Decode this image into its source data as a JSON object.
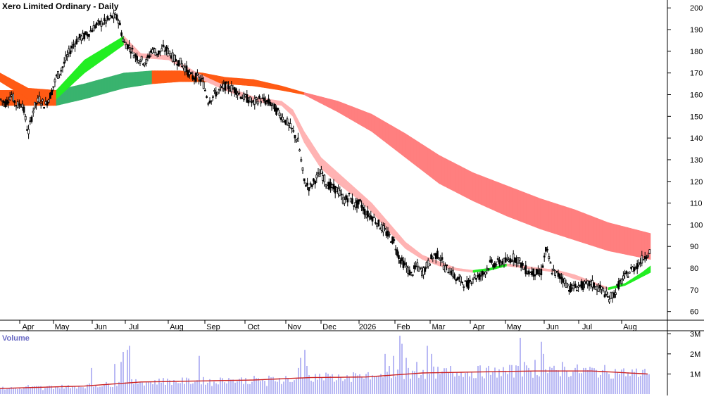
{
  "chart_data": {
    "type": "line",
    "title": "Xero Limited Ordinary - Daily",
    "price_axis": {
      "ticks": [
        200,
        190,
        180,
        170,
        160,
        150,
        140,
        130,
        120,
        110,
        100,
        90,
        80,
        70,
        60
      ],
      "ylim": [
        56,
        203
      ]
    },
    "x_axis": {
      "labels": [
        "Apr",
        "May",
        "Jun",
        "Jul",
        "Aug",
        "Sep",
        "Oct",
        "Nov",
        "Dec",
        "2026",
        "Feb",
        "Mar",
        "Apr",
        "May",
        "Jun",
        "Jul",
        "Aug"
      ]
    },
    "volume_panel": {
      "label": "Volume",
      "ticks": [
        "3M",
        "2M",
        "1M"
      ],
      "tick_values": [
        3000000,
        2000000,
        1000000
      ]
    },
    "price_series": {
      "name": "price",
      "points": [
        [
          0,
          158
        ],
        [
          8,
          156
        ],
        [
          16,
          160
        ],
        [
          24,
          155
        ],
        [
          32,
          156
        ],
        [
          40,
          142
        ],
        [
          48,
          154
        ],
        [
          56,
          158
        ],
        [
          64,
          155
        ],
        [
          72,
          160
        ],
        [
          80,
          168
        ],
        [
          88,
          172
        ],
        [
          96,
          178
        ],
        [
          104,
          183
        ],
        [
          112,
          186
        ],
        [
          120,
          187
        ],
        [
          128,
          189
        ],
        [
          136,
          192
        ],
        [
          144,
          193
        ],
        [
          152,
          194
        ],
        [
          160,
          196
        ],
        [
          168,
          195
        ],
        [
          176,
          184
        ],
        [
          184,
          182
        ],
        [
          192,
          178
        ],
        [
          200,
          176
        ],
        [
          208,
          175
        ],
        [
          216,
          181
        ],
        [
          224,
          179
        ],
        [
          232,
          181
        ],
        [
          240,
          180
        ],
        [
          248,
          176
        ],
        [
          256,
          175
        ],
        [
          264,
          172
        ],
        [
          272,
          168
        ],
        [
          280,
          168
        ],
        [
          288,
          166
        ],
        [
          296,
          157
        ],
        [
          304,
          160
        ],
        [
          312,
          162
        ],
        [
          320,
          164
        ],
        [
          328,
          163
        ],
        [
          336,
          162
        ],
        [
          344,
          159
        ],
        [
          352,
          158
        ],
        [
          360,
          156
        ],
        [
          368,
          158
        ],
        [
          376,
          157
        ],
        [
          384,
          156
        ],
        [
          392,
          153
        ],
        [
          400,
          150
        ],
        [
          408,
          147
        ],
        [
          416,
          143
        ],
        [
          424,
          138
        ],
        [
          432,
          120
        ],
        [
          440,
          117
        ],
        [
          448,
          121
        ],
        [
          456,
          124
        ],
        [
          464,
          119
        ],
        [
          472,
          117
        ],
        [
          480,
          116
        ],
        [
          488,
          111
        ],
        [
          496,
          113
        ],
        [
          504,
          109
        ],
        [
          512,
          110
        ],
        [
          520,
          105
        ],
        [
          528,
          104
        ],
        [
          536,
          101
        ],
        [
          544,
          98
        ],
        [
          552,
          95
        ],
        [
          560,
          92
        ],
        [
          568,
          84
        ],
        [
          576,
          81
        ],
        [
          584,
          77
        ],
        [
          592,
          81
        ],
        [
          600,
          78
        ],
        [
          608,
          82
        ],
        [
          616,
          86
        ],
        [
          624,
          86
        ],
        [
          632,
          80
        ],
        [
          640,
          79
        ],
        [
          648,
          75
        ],
        [
          656,
          74
        ],
        [
          664,
          72
        ],
        [
          672,
          76
        ],
        [
          680,
          76
        ],
        [
          688,
          78
        ],
        [
          696,
          82
        ],
        [
          704,
          82
        ],
        [
          712,
          83
        ],
        [
          720,
          83
        ],
        [
          728,
          85
        ],
        [
          736,
          84
        ],
        [
          744,
          80
        ],
        [
          752,
          78
        ],
        [
          760,
          78
        ],
        [
          768,
          77
        ],
        [
          776,
          89
        ],
        [
          784,
          79
        ],
        [
          792,
          77
        ],
        [
          800,
          75
        ],
        [
          808,
          71
        ],
        [
          816,
          71
        ],
        [
          824,
          72
        ],
        [
          832,
          72
        ],
        [
          840,
          73
        ],
        [
          848,
          71
        ],
        [
          856,
          70
        ],
        [
          864,
          66
        ],
        [
          872,
          68
        ],
        [
          880,
          73
        ],
        [
          888,
          76
        ],
        [
          896,
          79
        ],
        [
          904,
          81
        ],
        [
          912,
          84
        ],
        [
          920,
          87
        ],
        [
          924,
          88
        ]
      ]
    },
    "short_term_mma_band": {
      "name": "short-term moving averages",
      "upper": [
        [
          0,
          170
        ],
        [
          40,
          163
        ],
        [
          80,
          162
        ],
        [
          120,
          176
        ],
        [
          176,
          187
        ],
        [
          200,
          179
        ],
        [
          240,
          178
        ],
        [
          280,
          170
        ],
        [
          320,
          164
        ],
        [
          360,
          159
        ],
        [
          400,
          157
        ],
        [
          416,
          153
        ],
        [
          432,
          143
        ],
        [
          456,
          131
        ],
        [
          480,
          124
        ],
        [
          504,
          117
        ],
        [
          528,
          110
        ],
        [
          552,
          101
        ],
        [
          576,
          92
        ],
        [
          600,
          86
        ],
        [
          624,
          83
        ],
        [
          648,
          80
        ],
        [
          672,
          79
        ],
        [
          696,
          80
        ],
        [
          720,
          82
        ],
        [
          744,
          81
        ],
        [
          768,
          80
        ],
        [
          792,
          79
        ],
        [
          816,
          77
        ],
        [
          840,
          74
        ],
        [
          864,
          71
        ],
        [
          888,
          73
        ],
        [
          912,
          78
        ],
        [
          924,
          81
        ]
      ],
      "lower": [
        [
          0,
          166
        ],
        [
          40,
          158
        ],
        [
          80,
          158
        ],
        [
          120,
          170
        ],
        [
          176,
          183
        ],
        [
          200,
          177
        ],
        [
          240,
          176
        ],
        [
          280,
          168
        ],
        [
          320,
          162
        ],
        [
          360,
          157
        ],
        [
          400,
          155
        ],
        [
          416,
          150
        ],
        [
          432,
          138
        ],
        [
          456,
          126
        ],
        [
          480,
          119
        ],
        [
          504,
          113
        ],
        [
          528,
          106
        ],
        [
          552,
          97
        ],
        [
          576,
          89
        ],
        [
          600,
          84
        ],
        [
          624,
          81
        ],
        [
          648,
          79
        ],
        [
          672,
          78
        ],
        [
          696,
          79
        ],
        [
          720,
          81
        ],
        [
          744,
          80
        ],
        [
          768,
          79
        ],
        [
          792,
          78
        ],
        [
          816,
          75
        ],
        [
          840,
          73
        ],
        [
          864,
          70
        ],
        [
          888,
          72
        ],
        [
          912,
          76
        ],
        [
          924,
          78
        ]
      ]
    },
    "long_term_mma_band": {
      "name": "long-term moving averages",
      "upper": [
        [
          0,
          162
        ],
        [
          80,
          162
        ],
        [
          120,
          165
        ],
        [
          176,
          170
        ],
        [
          216,
          171
        ],
        [
          256,
          171
        ],
        [
          288,
          170
        ],
        [
          320,
          168
        ],
        [
          360,
          167
        ],
        [
          400,
          164
        ],
        [
          432,
          161
        ],
        [
          480,
          157
        ],
        [
          528,
          151
        ],
        [
          576,
          142
        ],
        [
          624,
          132
        ],
        [
          672,
          124
        ],
        [
          720,
          118
        ],
        [
          768,
          112
        ],
        [
          816,
          107
        ],
        [
          864,
          101
        ],
        [
          924,
          96
        ]
      ],
      "lower": [
        [
          0,
          155
        ],
        [
          80,
          155
        ],
        [
          120,
          158
        ],
        [
          176,
          163
        ],
        [
          216,
          165
        ],
        [
          256,
          166
        ],
        [
          288,
          166
        ],
        [
          320,
          165
        ],
        [
          360,
          164
        ],
        [
          400,
          162
        ],
        [
          432,
          160
        ],
        [
          480,
          152
        ],
        [
          528,
          143
        ],
        [
          576,
          131
        ],
        [
          624,
          119
        ],
        [
          672,
          111
        ],
        [
          720,
          104
        ],
        [
          768,
          98
        ],
        [
          816,
          93
        ],
        [
          864,
          88
        ],
        [
          924,
          84
        ]
      ]
    },
    "band_colors": {
      "bull_strong": "#22ee22",
      "bull": "#39b36e",
      "bear_weak": "#ff5a14",
      "bear": "#ff7f7f",
      "bear_light": "#ffb3b3",
      "candle": "#000000"
    },
    "volume_series": {
      "name": "volume",
      "average_color": "#cc2222",
      "bar_color": "#9a9af0",
      "points": [
        [
          2,
          0.25
        ],
        [
          12,
          0.3
        ],
        [
          24,
          0.25
        ],
        [
          40,
          0.45
        ],
        [
          60,
          0.2
        ],
        [
          80,
          0.35
        ],
        [
          100,
          0.3
        ],
        [
          130,
          1.3
        ],
        [
          150,
          0.6
        ],
        [
          164,
          1.5
        ],
        [
          172,
          1.6
        ],
        [
          176,
          2.1
        ],
        [
          180,
          2.2
        ],
        [
          184,
          2.4
        ],
        [
          200,
          0.6
        ],
        [
          232,
          0.8
        ],
        [
          248,
          0.7
        ],
        [
          272,
          0.5
        ],
        [
          284,
          1.9
        ],
        [
          300,
          0.4
        ],
        [
          324,
          0.8
        ],
        [
          352,
          0.5
        ],
        [
          380,
          0.4
        ],
        [
          400,
          0.5
        ],
        [
          416,
          0.6
        ],
        [
          424,
          1.3
        ],
        [
          428,
          1.8
        ],
        [
          432,
          2.2
        ],
        [
          436,
          1.4
        ],
        [
          448,
          1.0
        ],
        [
          470,
          0.9
        ],
        [
          500,
          0.6
        ],
        [
          520,
          1.0
        ],
        [
          536,
          0.9
        ],
        [
          548,
          2.0
        ],
        [
          552,
          1.4
        ],
        [
          560,
          1.9
        ],
        [
          568,
          2.9
        ],
        [
          572,
          2.5
        ],
        [
          576,
          1.8
        ],
        [
          580,
          1.3
        ],
        [
          592,
          1.6
        ],
        [
          600,
          1.2
        ],
        [
          608,
          2.4
        ],
        [
          612,
          2.0
        ],
        [
          624,
          1.0
        ],
        [
          640,
          1.4
        ],
        [
          656,
          1.1
        ],
        [
          680,
          1.4
        ],
        [
          700,
          1.1
        ],
        [
          720,
          1.0
        ],
        [
          736,
          1.4
        ],
        [
          740,
          2.8
        ],
        [
          744,
          1.6
        ],
        [
          752,
          1.3
        ],
        [
          760,
          1.7
        ],
        [
          768,
          2.6
        ],
        [
          772,
          2.0
        ],
        [
          784,
          1.3
        ],
        [
          800,
          1.6
        ],
        [
          816,
          1.3
        ],
        [
          832,
          1.3
        ],
        [
          848,
          1.2
        ],
        [
          864,
          1.0
        ],
        [
          880,
          1.0
        ],
        [
          896,
          0.9
        ],
        [
          912,
          1.2
        ],
        [
          920,
          1.0
        ]
      ],
      "average": [
        [
          0,
          0.28
        ],
        [
          120,
          0.4
        ],
        [
          200,
          0.6
        ],
        [
          280,
          0.65
        ],
        [
          360,
          0.7
        ],
        [
          440,
          0.82
        ],
        [
          520,
          0.85
        ],
        [
          560,
          0.95
        ],
        [
          600,
          1.05
        ],
        [
          680,
          1.1
        ],
        [
          760,
          1.15
        ],
        [
          840,
          1.15
        ],
        [
          920,
          1.0
        ]
      ]
    },
    "grid": false,
    "legend": "none"
  }
}
